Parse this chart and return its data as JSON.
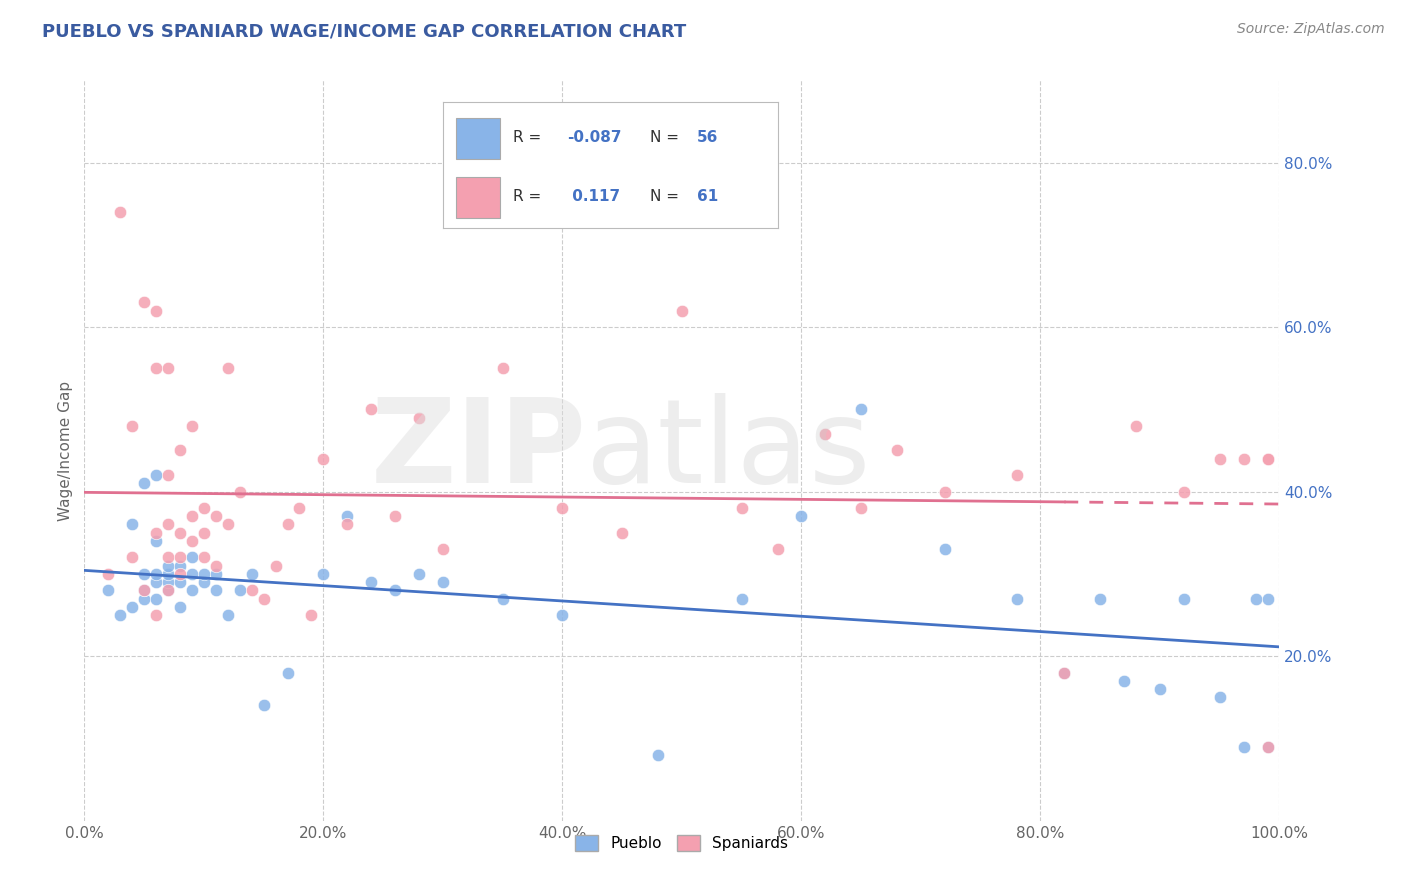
{
  "title": "PUEBLO VS SPANIARD WAGE/INCOME GAP CORRELATION CHART",
  "source_text": "Source: ZipAtlas.com",
  "ylabel": "Wage/Income Gap",
  "xlim": [
    0.0,
    1.0
  ],
  "ylim": [
    0.0,
    0.9
  ],
  "ytick_labels": [
    "20.0%",
    "40.0%",
    "60.0%",
    "80.0%"
  ],
  "ytick_values": [
    0.2,
    0.4,
    0.6,
    0.8
  ],
  "xtick_labels": [
    "0.0%",
    "20.0%",
    "40.0%",
    "60.0%",
    "80.0%",
    "100.0%"
  ],
  "xtick_values": [
    0.0,
    0.2,
    0.4,
    0.6,
    0.8,
    1.0
  ],
  "title_color": "#3a5ba0",
  "grid_color": "#cccccc",
  "background_color": "#ffffff",
  "pueblo_color": "#89b4e8",
  "spaniard_color": "#f4a0b0",
  "pueblo_line_color": "#4472c4",
  "spaniard_line_color": "#e07090",
  "ytick_color": "#4472c4",
  "xtick_color": "#666666",
  "legend_r_pueblo": "-0.087",
  "legend_n_pueblo": "56",
  "legend_r_spaniard": "0.117",
  "legend_n_spaniard": "61",
  "pueblo_scatter_x": [
    0.02,
    0.03,
    0.04,
    0.04,
    0.05,
    0.05,
    0.05,
    0.05,
    0.06,
    0.06,
    0.06,
    0.06,
    0.06,
    0.07,
    0.07,
    0.07,
    0.07,
    0.08,
    0.08,
    0.08,
    0.09,
    0.09,
    0.09,
    0.1,
    0.1,
    0.11,
    0.11,
    0.12,
    0.13,
    0.14,
    0.15,
    0.17,
    0.2,
    0.22,
    0.24,
    0.26,
    0.28,
    0.3,
    0.35,
    0.4,
    0.48,
    0.55,
    0.6,
    0.65,
    0.72,
    0.78,
    0.82,
    0.85,
    0.87,
    0.9,
    0.92,
    0.95,
    0.97,
    0.98,
    0.99,
    0.99
  ],
  "pueblo_scatter_y": [
    0.28,
    0.25,
    0.26,
    0.36,
    0.27,
    0.28,
    0.3,
    0.41,
    0.42,
    0.27,
    0.29,
    0.3,
    0.34,
    0.28,
    0.29,
    0.3,
    0.31,
    0.26,
    0.29,
    0.31,
    0.28,
    0.3,
    0.32,
    0.29,
    0.3,
    0.28,
    0.3,
    0.25,
    0.28,
    0.3,
    0.14,
    0.18,
    0.3,
    0.37,
    0.29,
    0.28,
    0.3,
    0.29,
    0.27,
    0.25,
    0.08,
    0.27,
    0.37,
    0.5,
    0.33,
    0.27,
    0.18,
    0.27,
    0.17,
    0.16,
    0.27,
    0.15,
    0.09,
    0.27,
    0.27,
    0.09
  ],
  "spaniard_scatter_x": [
    0.02,
    0.03,
    0.04,
    0.04,
    0.05,
    0.05,
    0.06,
    0.06,
    0.06,
    0.06,
    0.07,
    0.07,
    0.07,
    0.07,
    0.07,
    0.08,
    0.08,
    0.08,
    0.08,
    0.09,
    0.09,
    0.09,
    0.1,
    0.1,
    0.1,
    0.11,
    0.11,
    0.12,
    0.12,
    0.13,
    0.14,
    0.15,
    0.16,
    0.17,
    0.18,
    0.19,
    0.2,
    0.22,
    0.24,
    0.26,
    0.28,
    0.3,
    0.35,
    0.4,
    0.45,
    0.5,
    0.55,
    0.58,
    0.62,
    0.65,
    0.68,
    0.72,
    0.78,
    0.82,
    0.88,
    0.92,
    0.95,
    0.97,
    0.99,
    0.99,
    0.99
  ],
  "spaniard_scatter_y": [
    0.3,
    0.74,
    0.32,
    0.48,
    0.28,
    0.63,
    0.25,
    0.35,
    0.55,
    0.62,
    0.28,
    0.32,
    0.36,
    0.42,
    0.55,
    0.3,
    0.32,
    0.35,
    0.45,
    0.34,
    0.37,
    0.48,
    0.32,
    0.35,
    0.38,
    0.31,
    0.37,
    0.36,
    0.55,
    0.4,
    0.28,
    0.27,
    0.31,
    0.36,
    0.38,
    0.25,
    0.44,
    0.36,
    0.5,
    0.37,
    0.49,
    0.33,
    0.55,
    0.38,
    0.35,
    0.62,
    0.38,
    0.33,
    0.47,
    0.38,
    0.45,
    0.4,
    0.42,
    0.18,
    0.48,
    0.4,
    0.44,
    0.44,
    0.09,
    0.44,
    0.44
  ]
}
